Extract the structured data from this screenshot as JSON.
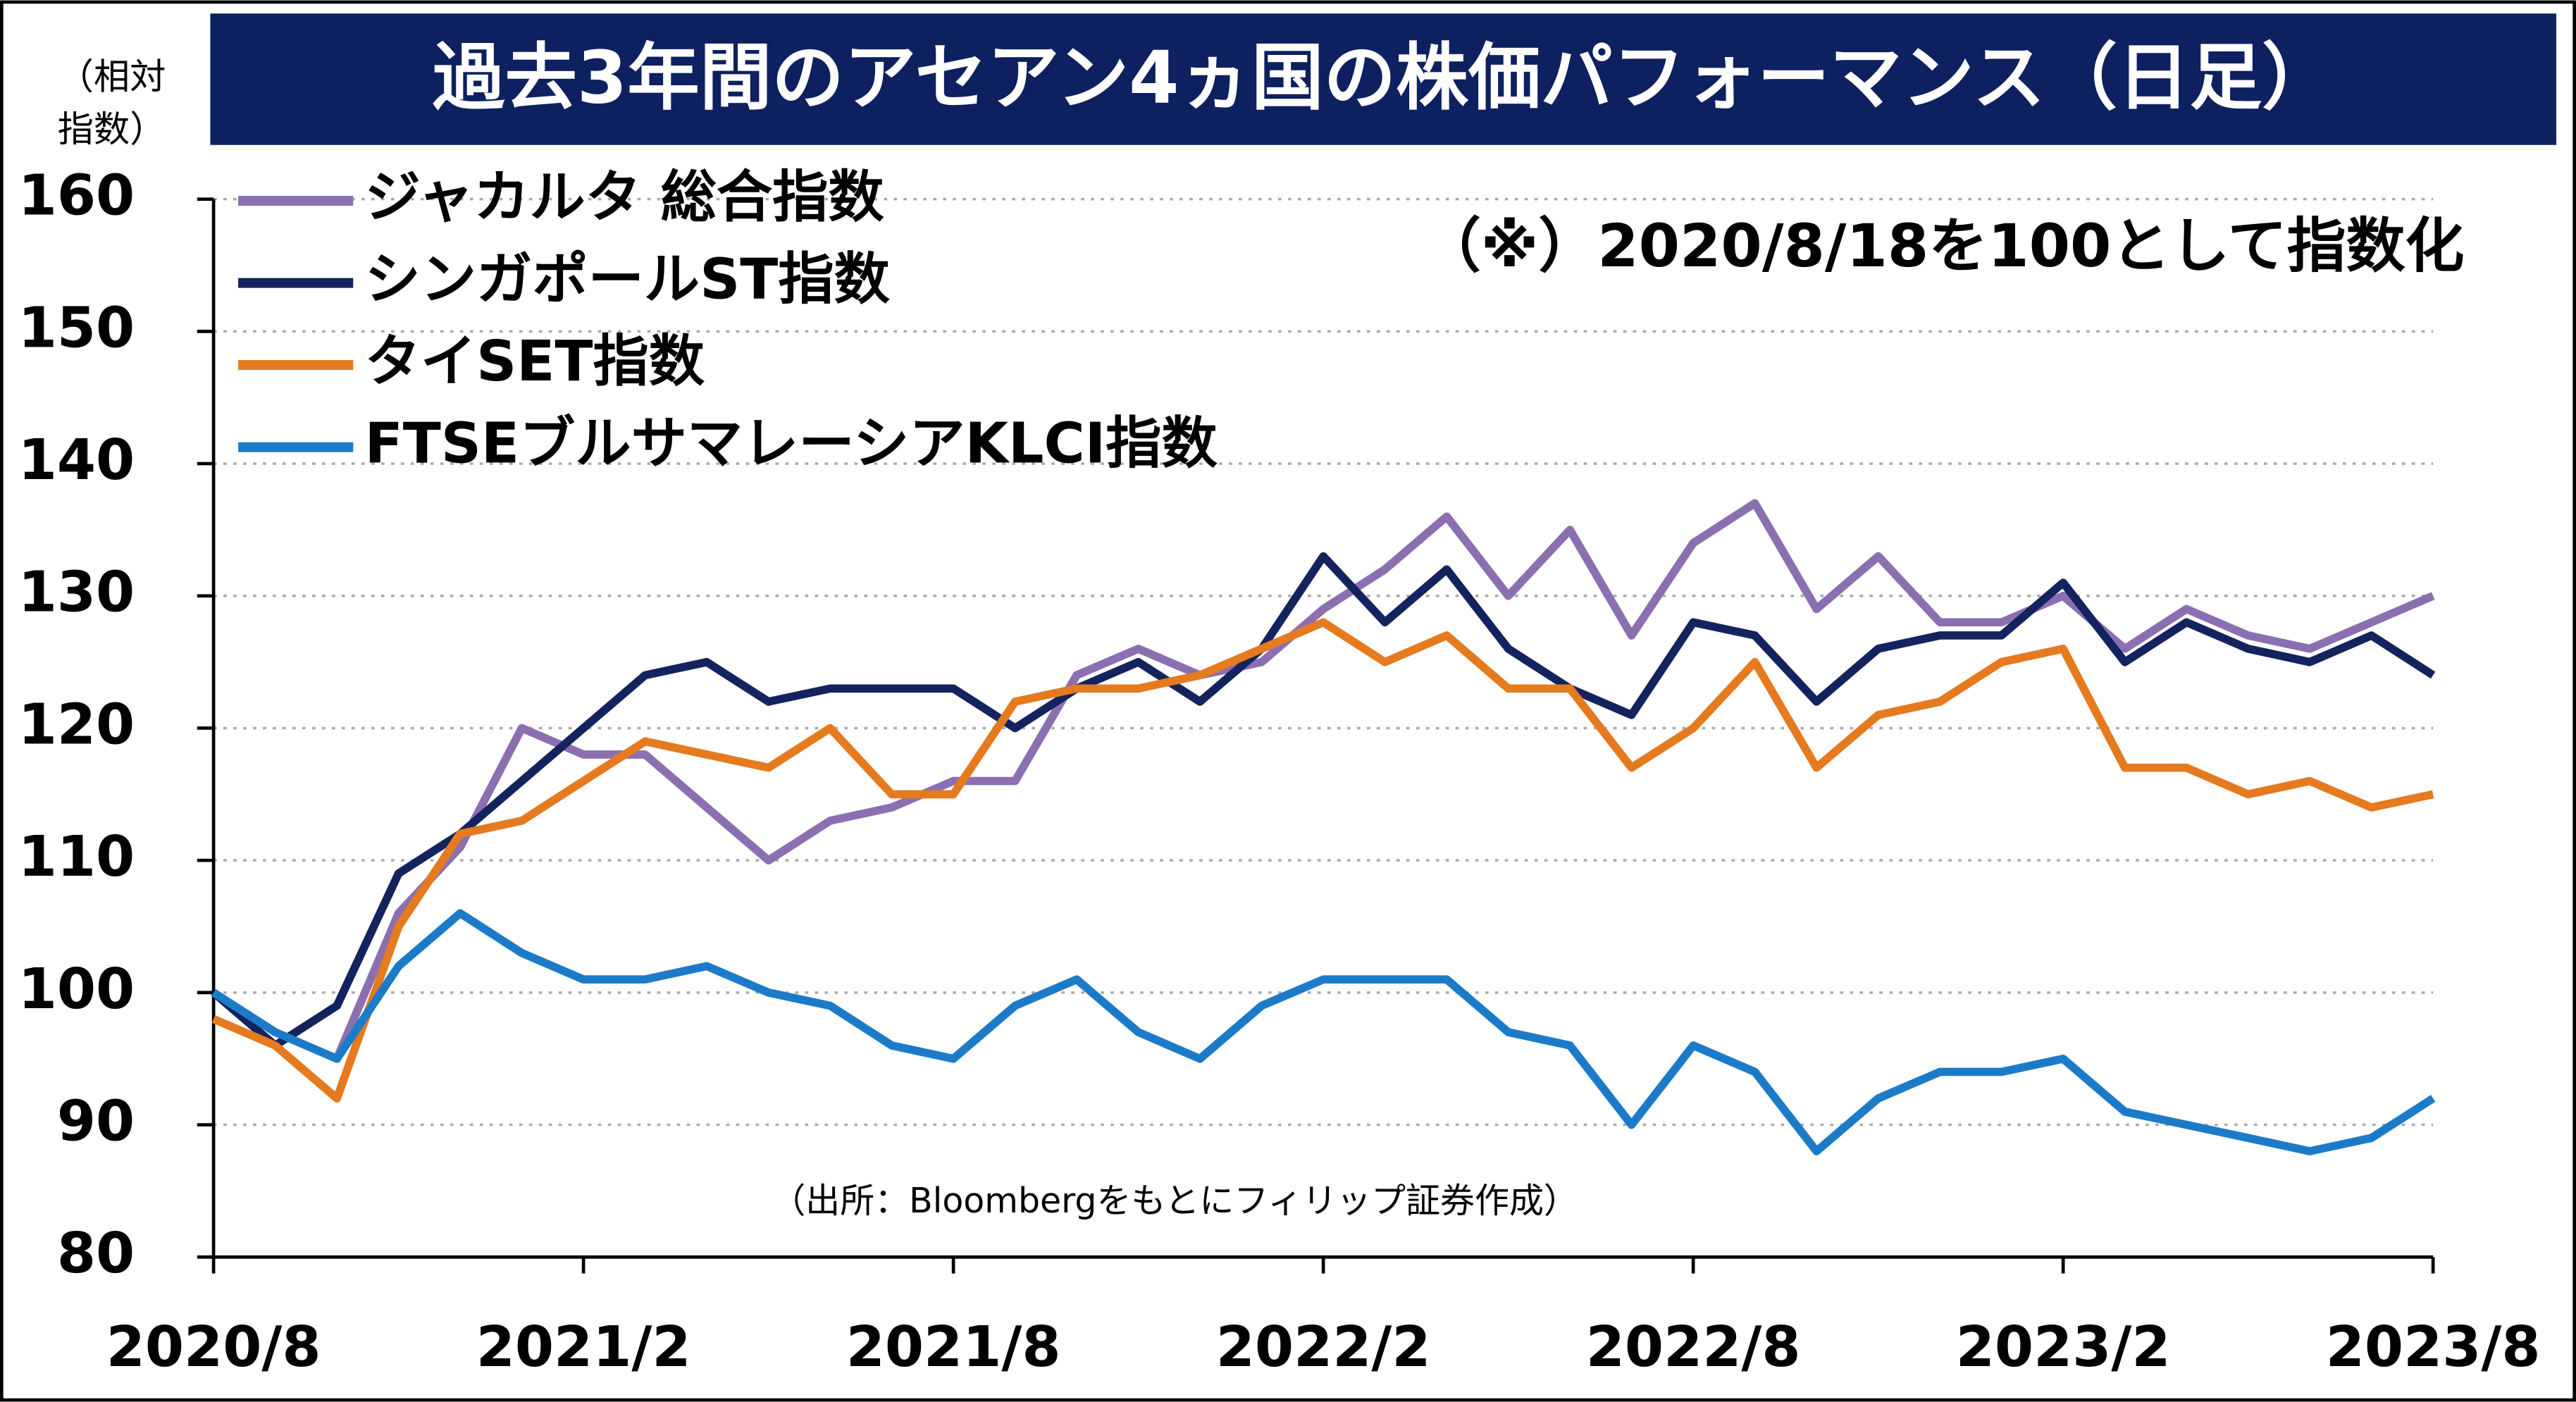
{
  "chart_data": {
    "type": "line",
    "title": "過去3年間のアセアン4ヵ国の株価パフォーマンス（日足）",
    "y_label": [
      "（相対",
      "指数）"
    ],
    "annotation": "（※）2020/8/18を100として指数化",
    "source": "（出所：Bloombergをもとにフィリップ証券作成）",
    "x": [
      "2020/8",
      null,
      null,
      null,
      null,
      null,
      "2021/2",
      null,
      null,
      null,
      null,
      null,
      "2021/8",
      null,
      null,
      null,
      null,
      null,
      "2022/2",
      null,
      null,
      null,
      null,
      null,
      "2022/8",
      null,
      null,
      null,
      null,
      null,
      "2023/2",
      null,
      null,
      null,
      null,
      null,
      "2023/8"
    ],
    "series": [
      {
        "name": "ジャカルタ 総合指数",
        "color": "#8b6fb0",
        "values": [
          100,
          97,
          95,
          106,
          111,
          120,
          118,
          118,
          114,
          110,
          113,
          114,
          116,
          116,
          124,
          126,
          124,
          125,
          129,
          132,
          136,
          130,
          135,
          127,
          134,
          137,
          129,
          133,
          128,
          128,
          130,
          126,
          129,
          127,
          126,
          128,
          130
        ]
      },
      {
        "name": "シンガポールST指数",
        "color": "#13235e",
        "values": [
          100,
          96,
          99,
          109,
          112,
          116,
          120,
          124,
          125,
          122,
          123,
          123,
          123,
          120,
          123,
          125,
          122,
          126,
          133,
          128,
          132,
          126,
          123,
          121,
          128,
          127,
          122,
          126,
          127,
          127,
          131,
          125,
          128,
          126,
          125,
          127,
          124
        ]
      },
      {
        "name": "タイSET指数",
        "color": "#e57a1f",
        "values": [
          98,
          96,
          92,
          105,
          112,
          113,
          116,
          119,
          118,
          117,
          120,
          115,
          115,
          122,
          123,
          123,
          124,
          126,
          128,
          125,
          127,
          123,
          123,
          117,
          120,
          125,
          117,
          121,
          122,
          125,
          126,
          117,
          117,
          115,
          116,
          114,
          115
        ]
      },
      {
        "name": "FTSEブルサマレーシアKLCI指数",
        "color": "#1c7bc8",
        "values": [
          100,
          97,
          95,
          102,
          106,
          103,
          101,
          101,
          102,
          100,
          99,
          96,
          95,
          99,
          101,
          97,
          95,
          99,
          101,
          101,
          101,
          97,
          96,
          90,
          96,
          94,
          88,
          92,
          94,
          94,
          95,
          91,
          90,
          89,
          88,
          89,
          92
        ]
      }
    ],
    "ylim": [
      80,
      160
    ],
    "yticks": [
      80,
      90,
      100,
      110,
      120,
      130,
      140,
      150,
      160
    ],
    "grid": true
  }
}
